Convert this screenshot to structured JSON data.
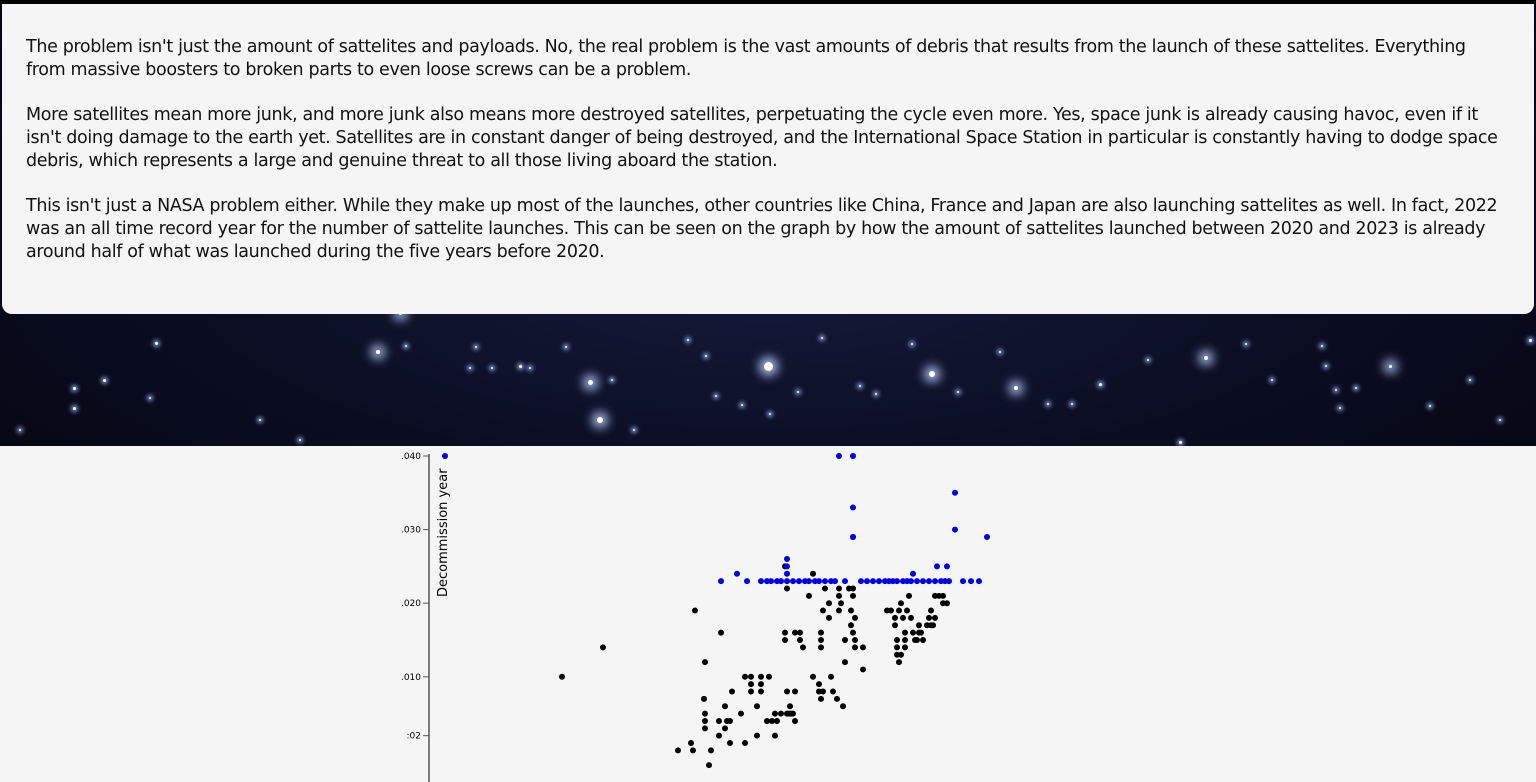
{
  "article": {
    "paragraphs": [
      "The problem isn't just the amount of sattelites and payloads. No, the real problem is the vast amounts of debris that results from the launch of these sattelites. Everything from massive boosters to broken parts to even loose screws can be a problem.",
      "More satellites mean more junk, and more junk also means more destroyed satellites, perpetuating the cycle even more. Yes, space junk is already causing havoc, even if it isn't doing damage to the earth yet. Satellites are in constant danger of being destroyed, and the International Space Station in particular is constantly having to dodge space debris, which represents a large and genuine threat to all those living aboard the station.",
      "This isn't just a NASA problem either. While they make up most of the launches, other countries like China, France and Japan are also launching sattelites as well. In fact, 2022 was an all time record year for the number of sattelite launches. This can be seen on the graph by how the amount of sattelites launched between 2020 and 2023 is already around half of what was launched during the five years before 2020."
    ]
  },
  "chart_data": {
    "type": "scatter",
    "ylabel": "Decommission year",
    "yticks": [
      {
        "value": 2,
        "label": ":02"
      },
      {
        "value": 10,
        "label": ".010"
      },
      {
        "value": 20,
        "label": ".020"
      },
      {
        "value": 30,
        "label": ".030"
      },
      {
        "value": 40,
        "label": ".040"
      }
    ],
    "ylim": [
      -2,
      40
    ],
    "series_colors": {
      "black_points": "#000000",
      "blue_points": "#0000dd"
    },
    "black_points": [
      [
        117,
        10
      ],
      [
        158,
        14
      ],
      [
        250,
        19
      ],
      [
        233,
        0
      ],
      [
        246,
        1
      ],
      [
        248,
        0
      ],
      [
        264,
        -2
      ],
      [
        266,
        0
      ],
      [
        260,
        12
      ],
      [
        259,
        7
      ],
      [
        276,
        16
      ],
      [
        260,
        4
      ],
      [
        260,
        3
      ],
      [
        260,
        5
      ],
      [
        274,
        2
      ],
      [
        274,
        4
      ],
      [
        280,
        3
      ],
      [
        280,
        6
      ],
      [
        285,
        1
      ],
      [
        285,
        4
      ],
      [
        282,
        4
      ],
      [
        287,
        8
      ],
      [
        296,
        5
      ],
      [
        300,
        1
      ],
      [
        300,
        10
      ],
      [
        306,
        10
      ],
      [
        306,
        9
      ],
      [
        306,
        8
      ],
      [
        312,
        2
      ],
      [
        312,
        6
      ],
      [
        316,
        8
      ],
      [
        316,
        9
      ],
      [
        316,
        10
      ],
      [
        322,
        4
      ],
      [
        324,
        10
      ],
      [
        327,
        4
      ],
      [
        332,
        4
      ],
      [
        330,
        2
      ],
      [
        330,
        5
      ],
      [
        336,
        5
      ],
      [
        340,
        15
      ],
      [
        340,
        16
      ],
      [
        342,
        8
      ],
      [
        342,
        5
      ],
      [
        344,
        5
      ],
      [
        346,
        5
      ],
      [
        348,
        5
      ],
      [
        340,
        25
      ],
      [
        342,
        22
      ],
      [
        345,
        6
      ],
      [
        350,
        4
      ],
      [
        350,
        16
      ],
      [
        350,
        8
      ],
      [
        355,
        15
      ],
      [
        355,
        16
      ],
      [
        358,
        14
      ],
      [
        364,
        21
      ],
      [
        368,
        24
      ],
      [
        368,
        10
      ],
      [
        374,
        8
      ],
      [
        374,
        9
      ],
      [
        376,
        7
      ],
      [
        376,
        14
      ],
      [
        378,
        19
      ],
      [
        378,
        8
      ],
      [
        376,
        16
      ],
      [
        376,
        15
      ],
      [
        380,
        22
      ],
      [
        384,
        20
      ],
      [
        384,
        18
      ],
      [
        386,
        10
      ],
      [
        388,
        8
      ],
      [
        392,
        7
      ],
      [
        394,
        22
      ],
      [
        394,
        19
      ],
      [
        398,
        6
      ],
      [
        400,
        15
      ],
      [
        400,
        12
      ],
      [
        404,
        22
      ],
      [
        406,
        17
      ],
      [
        408,
        16
      ],
      [
        410,
        18
      ],
      [
        410,
        15
      ],
      [
        418,
        11
      ],
      [
        418,
        14
      ],
      [
        408,
        22
      ],
      [
        408,
        21
      ],
      [
        406,
        19
      ],
      [
        410,
        14
      ],
      [
        394,
        21
      ],
      [
        396,
        20
      ],
      [
        442,
        19
      ],
      [
        446,
        19
      ],
      [
        450,
        18
      ],
      [
        450,
        17
      ],
      [
        452,
        13
      ],
      [
        452,
        14
      ],
      [
        452,
        15
      ],
      [
        454,
        12
      ],
      [
        454,
        19
      ],
      [
        456,
        20
      ],
      [
        456,
        13
      ],
      [
        458,
        18
      ],
      [
        460,
        16
      ],
      [
        460,
        15
      ],
      [
        460,
        14
      ],
      [
        462,
        19
      ],
      [
        464,
        21
      ],
      [
        466,
        18
      ],
      [
        468,
        16
      ],
      [
        470,
        15
      ],
      [
        472,
        15
      ],
      [
        474,
        16
      ],
      [
        474,
        17
      ],
      [
        476,
        16
      ],
      [
        478,
        15
      ],
      [
        482,
        17
      ],
      [
        484,
        18
      ],
      [
        486,
        19
      ],
      [
        486,
        17
      ],
      [
        488,
        17
      ],
      [
        490,
        18
      ],
      [
        490,
        21
      ],
      [
        494,
        21
      ],
      [
        498,
        21
      ],
      [
        498,
        20
      ],
      [
        502,
        20
      ]
    ],
    "blue_points": [
      [
        0,
        40
      ],
      [
        276,
        23
      ],
      [
        292,
        24
      ],
      [
        302,
        23
      ],
      [
        316,
        23
      ],
      [
        322,
        23
      ],
      [
        326,
        23
      ],
      [
        332,
        23
      ],
      [
        336,
        23
      ],
      [
        342,
        23
      ],
      [
        342,
        26
      ],
      [
        342,
        25
      ],
      [
        342,
        24
      ],
      [
        348,
        23
      ],
      [
        354,
        23
      ],
      [
        360,
        23
      ],
      [
        364,
        23
      ],
      [
        370,
        23
      ],
      [
        374,
        23
      ],
      [
        380,
        23
      ],
      [
        386,
        23
      ],
      [
        390,
        23
      ],
      [
        394,
        40
      ],
      [
        400,
        23
      ],
      [
        408,
        40
      ],
      [
        408,
        33
      ],
      [
        408,
        29
      ],
      [
        408,
        29
      ],
      [
        416,
        23
      ],
      [
        422,
        23
      ],
      [
        428,
        23
      ],
      [
        434,
        23
      ],
      [
        440,
        23
      ],
      [
        444,
        23
      ],
      [
        448,
        23
      ],
      [
        452,
        23
      ],
      [
        458,
        23
      ],
      [
        462,
        23
      ],
      [
        466,
        23
      ],
      [
        468,
        24
      ],
      [
        472,
        23
      ],
      [
        478,
        23
      ],
      [
        484,
        23
      ],
      [
        490,
        23
      ],
      [
        492,
        25
      ],
      [
        496,
        23
      ],
      [
        500,
        23
      ],
      [
        502,
        25
      ],
      [
        504,
        23
      ],
      [
        510,
        35
      ],
      [
        510,
        30
      ],
      [
        518,
        23
      ],
      [
        526,
        23
      ],
      [
        534,
        23
      ],
      [
        542,
        29
      ]
    ]
  }
}
